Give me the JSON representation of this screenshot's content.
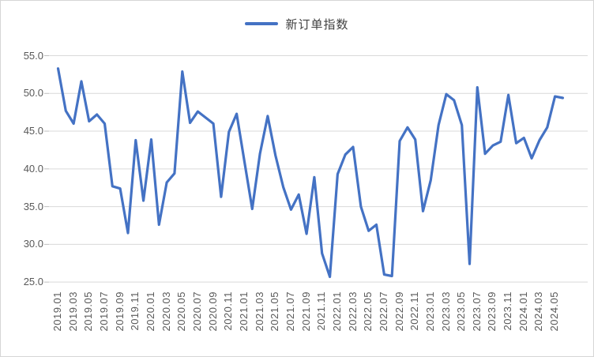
{
  "colors": {
    "line": "#4472C4",
    "grid": "#D9D9D9",
    "tick": "#BFBFBF",
    "axis_text": "#595959",
    "legend_text": "#3F3F3F",
    "card_border": "#D6D6D6",
    "background": "#FFFFFF"
  },
  "chart_data": {
    "type": "line",
    "legend": "新订单指数",
    "legend_position": "top-center",
    "grid": "horizontal",
    "ylim": [
      25.0,
      55.0
    ],
    "y_tick_step": 5.0,
    "y_tick_labels": [
      "25.0",
      "30.0",
      "35.0",
      "40.0",
      "45.0",
      "50.0",
      "55.0"
    ],
    "x_tick_labels_visible": [
      "2019.01",
      "2019.03",
      "2019.05",
      "2019.07",
      "2019.09",
      "2019.11",
      "2020.01",
      "2020.03",
      "2020.05",
      "2020.07",
      "2020.09",
      "2020.11",
      "2021.01",
      "2021.03",
      "2021.05",
      "2021.07",
      "2021.09",
      "2021.11",
      "2022.01",
      "2022.03",
      "2022.05",
      "2022.07",
      "2022.09",
      "2022.11",
      "2023.01",
      "2023.03",
      "2023.05",
      "2023.07",
      "2023.09",
      "2023.11",
      "2024.01",
      "2024.03",
      "2024.05"
    ],
    "categories": [
      "2019.01",
      "2019.02",
      "2019.03",
      "2019.04",
      "2019.05",
      "2019.06",
      "2019.07",
      "2019.08",
      "2019.09",
      "2019.10",
      "2019.11",
      "2019.12",
      "2020.01",
      "2020.02",
      "2020.03",
      "2020.04",
      "2020.05",
      "2020.06",
      "2020.07",
      "2020.08",
      "2020.09",
      "2020.10",
      "2020.11",
      "2020.12",
      "2021.01",
      "2021.02",
      "2021.03",
      "2021.04",
      "2021.05",
      "2021.06",
      "2021.07",
      "2021.08",
      "2021.09",
      "2021.10",
      "2021.11",
      "2021.12",
      "2022.01",
      "2022.02",
      "2022.03",
      "2022.04",
      "2022.05",
      "2022.06",
      "2022.07",
      "2022.08",
      "2022.09",
      "2022.10",
      "2022.11",
      "2022.12",
      "2023.01",
      "2023.02",
      "2023.03",
      "2023.04",
      "2023.05",
      "2023.06",
      "2023.07",
      "2023.08",
      "2023.09",
      "2023.10",
      "2023.11",
      "2023.12",
      "2024.01",
      "2024.02",
      "2024.03",
      "2024.04",
      "2024.05",
      "2024.06"
    ],
    "series": [
      {
        "name": "新订单指数",
        "values": [
          53.3,
          47.7,
          46.0,
          51.6,
          46.3,
          47.2,
          46.0,
          37.7,
          37.4,
          31.5,
          43.8,
          35.8,
          43.9,
          32.6,
          38.2,
          39.4,
          52.9,
          46.1,
          47.6,
          46.8,
          46.0,
          36.3,
          44.9,
          47.3,
          41.0,
          34.7,
          42.0,
          47.0,
          41.8,
          37.6,
          34.6,
          36.6,
          31.4,
          38.9,
          28.8,
          25.7,
          39.3,
          41.9,
          42.9,
          35.0,
          31.8,
          32.6,
          26.0,
          25.8,
          43.7,
          45.5,
          43.9,
          34.4,
          38.5,
          45.8,
          49.9,
          49.1,
          45.8,
          27.4,
          50.8,
          42.0,
          43.1,
          43.6,
          49.8,
          43.4,
          44.1,
          41.4,
          43.8,
          45.5,
          49.6,
          49.4
        ]
      }
    ]
  }
}
